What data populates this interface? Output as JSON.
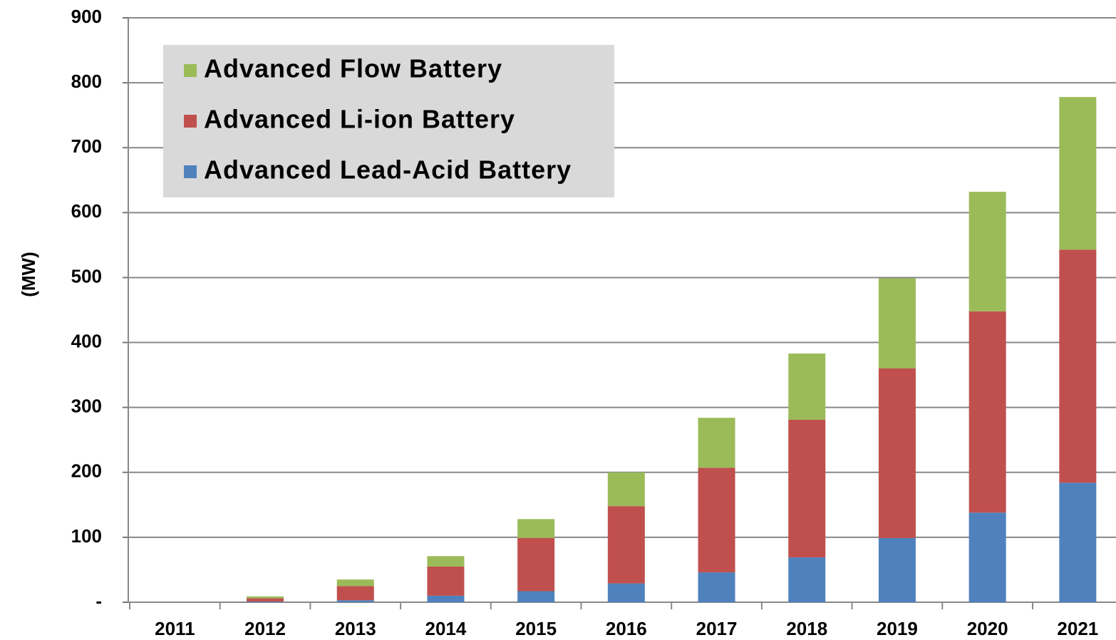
{
  "chart_data": {
    "type": "stacked_bar",
    "y_label": "(MW)",
    "categories": [
      "2011",
      "2012",
      "2013",
      "2014",
      "2015",
      "2016",
      "2017",
      "2018",
      "2019",
      "2020",
      "2021"
    ],
    "series": [
      {
        "name": "Advanced Lead-Acid Battery",
        "color": "#4f81bd",
        "values": [
          0,
          1,
          3,
          10,
          17,
          29,
          46,
          69,
          99,
          138,
          184
        ]
      },
      {
        "name": "Advanced Li-ion Battery",
        "color": "#c0504d",
        "values": [
          0,
          5,
          22,
          45,
          82,
          119,
          161,
          212,
          261,
          310,
          359
        ]
      },
      {
        "name": "Advanced Flow Battery",
        "color": "#9bbb59",
        "values": [
          0,
          3,
          10,
          16,
          29,
          52,
          77,
          102,
          139,
          184,
          235
        ]
      }
    ],
    "ylim": [
      0,
      900
    ],
    "yticks": [
      {
        "value": 0,
        "label": "-"
      },
      100,
      200,
      300,
      400,
      500,
      600,
      700,
      800,
      900
    ],
    "grid": true,
    "legend": "upper left"
  }
}
